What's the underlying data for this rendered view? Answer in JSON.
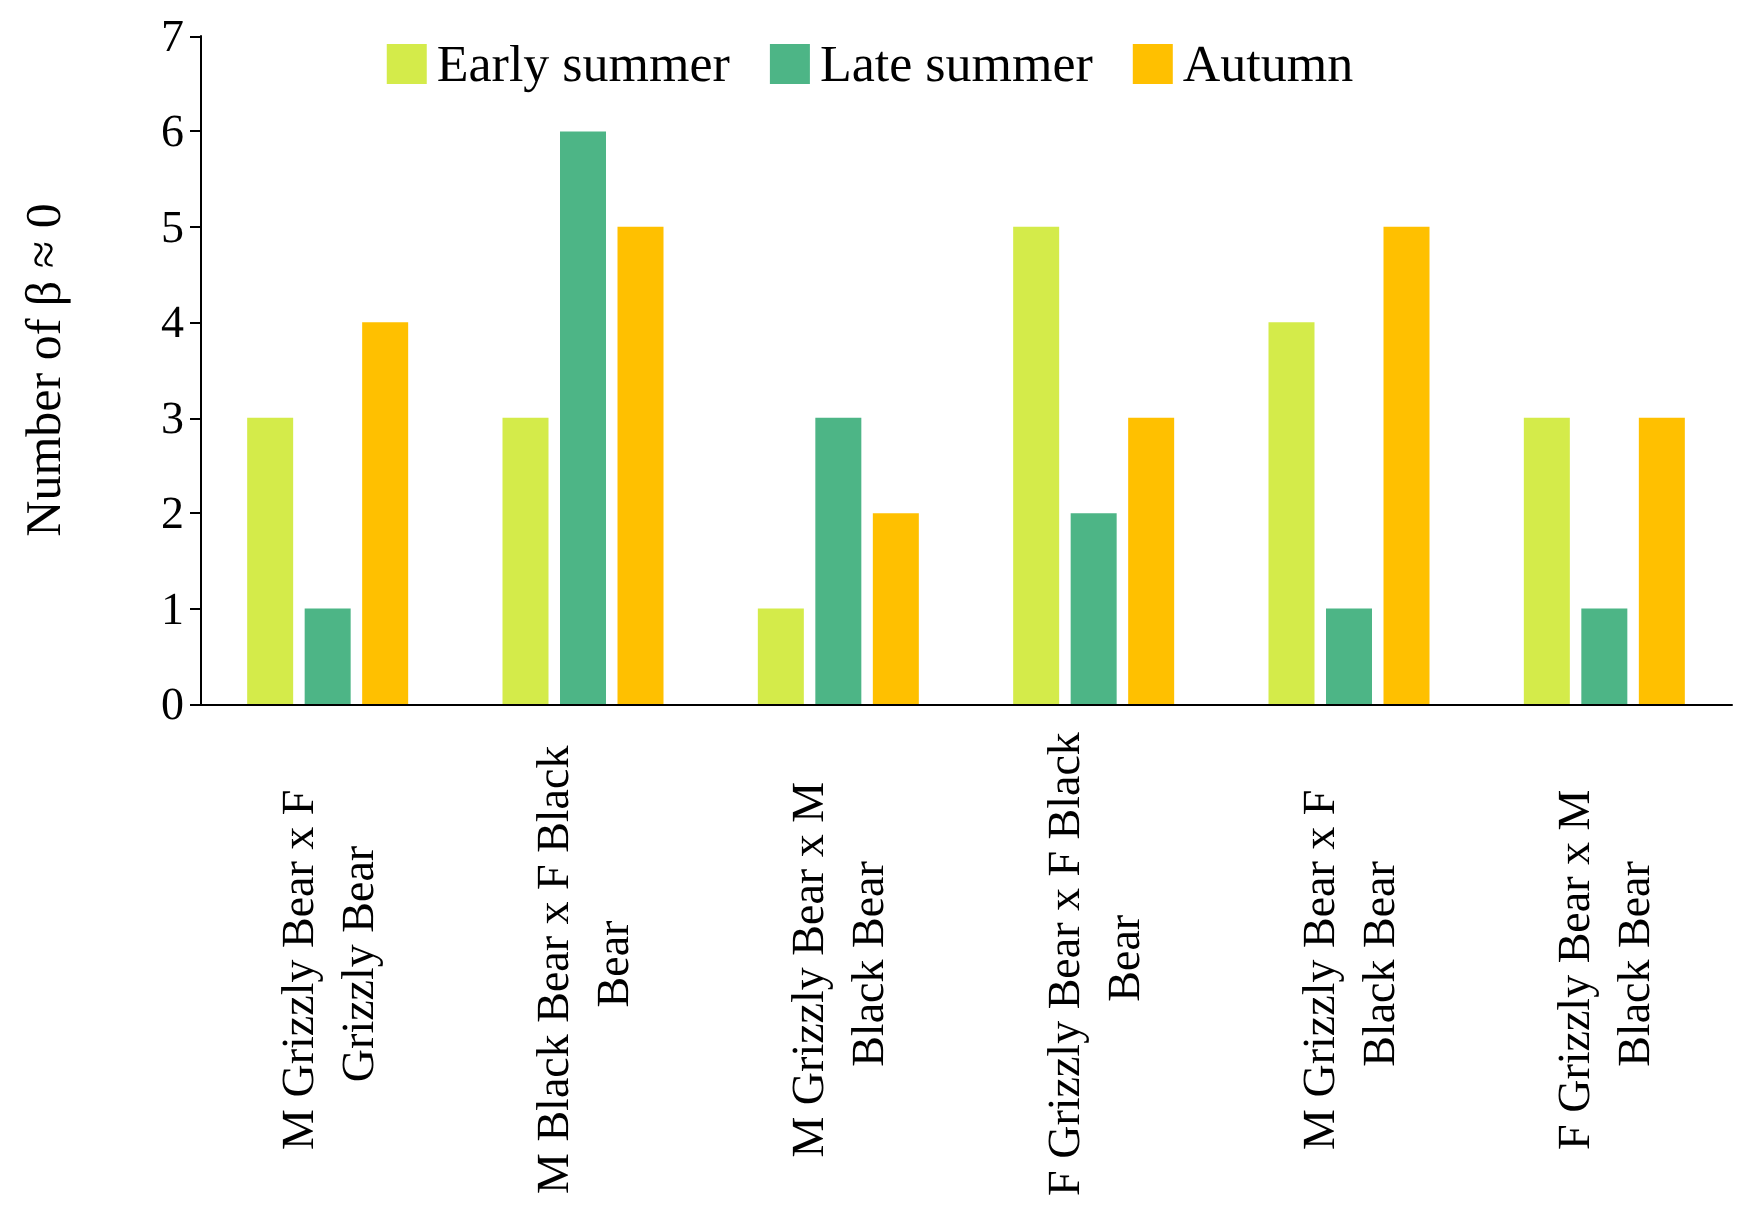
{
  "chart_data": {
    "type": "bar",
    "ylabel": "Number of β ≈ 0",
    "categories": [
      "M Grizzly Bear x F Grizzly Bear",
      "M Black Bear x F Black Bear",
      "M Grizzly Bear x M Black Bear",
      "F Grizzly Bear x F Black Bear",
      "M Grizzly Bear x F Black Bear",
      "F Grizzly Bear x M Black Bear"
    ],
    "series": [
      {
        "name": "Early summer",
        "color": "#d4eb4a",
        "values": [
          3,
          3,
          1,
          5,
          4,
          3
        ]
      },
      {
        "name": "Late summer",
        "color": "#4db586",
        "values": [
          1,
          6,
          3,
          2,
          1,
          1
        ]
      },
      {
        "name": "Autumn",
        "color": "#ffc000",
        "values": [
          4,
          5,
          2,
          3,
          5,
          3
        ]
      }
    ],
    "ylim": [
      0,
      7
    ],
    "yticks": [
      0,
      1,
      2,
      3,
      4,
      5,
      6,
      7
    ],
    "grid": false,
    "legend": "top"
  }
}
